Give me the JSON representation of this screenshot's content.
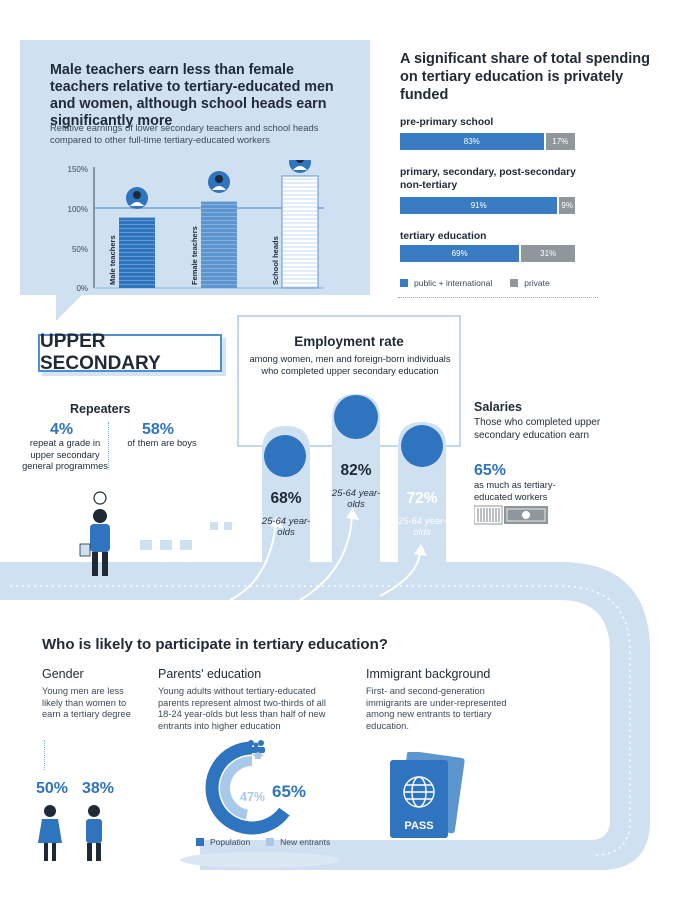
{
  "earnings": {
    "title": "Male teachers earn less than female teachers relative to tertiary-educated men and women, although school heads earn significantly more",
    "subtitle": "Relative earnings of lower secondary teachers and school heads compared to other full-time tertiary-educated workers",
    "colors": {
      "male": "#2e74bf",
      "female": "#5d95cf",
      "heads": "#ffffff"
    }
  },
  "chart_data": {
    "type": "bar",
    "categories": [
      "Male teachers",
      "Female teachers",
      "School heads"
    ],
    "values": [
      88,
      108,
      140
    ],
    "title": "",
    "xlabel": "",
    "ylabel": "",
    "yticks": [
      "150%",
      "100%",
      "50%",
      "0%"
    ],
    "ylim": [
      0,
      150
    ],
    "reference_line": 100
  },
  "spending": {
    "title": "A significant share of total spending on tertiary education is privately funded",
    "rows": [
      {
        "label": "pre-primary school",
        "public": 83,
        "private": 17,
        "public_text": "83%",
        "private_text": "17%"
      },
      {
        "label": "primary, secondary, post-secondary non-tertiary",
        "public": 91,
        "private": 9,
        "public_text": "91%",
        "private_text": "9%"
      },
      {
        "label": "tertiary education",
        "public": 69,
        "private": 31,
        "public_text": "69%",
        "private_text": "31%"
      }
    ],
    "legend_public": "public + international",
    "legend_private": "private",
    "colors": {
      "public": "#3a7cc2",
      "private": "#8f969c"
    }
  },
  "upper_secondary": {
    "title": "UPPER SECONDARY",
    "employment": {
      "title": "Employment rate",
      "subtitle": "among women, men and foreign-born individuals who completed upper secondary education",
      "women_pct": "68%",
      "men_pct": "82%",
      "foreign_pct": "72%",
      "age": "25-64 year-olds"
    },
    "repeaters": {
      "title": "Repeaters",
      "pct1": "4%",
      "text1": "repeat a grade in upper secondary general programmes",
      "pct2": "58%",
      "text2": "of them are boys"
    },
    "salaries": {
      "title": "Salaries",
      "text": "Those who completed upper secondary education earn",
      "pct": "65%",
      "text2": "as much as tertiary-educated workers"
    }
  },
  "tertiary": {
    "title": "Who is likely to participate in tertiary education?",
    "gender": {
      "title": "Gender",
      "text": "Young men are less likely than women to earn a tertiary degree",
      "female_pct": "50%",
      "male_pct": "38%"
    },
    "parents": {
      "title": "Parents' education",
      "text": "Young adults without tertiary-educated parents represent almost two-thirds of all 18-24 year-olds but less than half of new entrants into higher education",
      "entrants_pct": "47%",
      "population_pct": "65%",
      "population_value": 65,
      "entrants_value": 47,
      "legend_population": "Population",
      "legend_entrants": "New entrants"
    },
    "immigrant": {
      "title": "Immigrant background",
      "text": "First- and second-generation immigrants are under-represented among new entrants to tertiary education.",
      "passport_text": "PASS"
    }
  }
}
